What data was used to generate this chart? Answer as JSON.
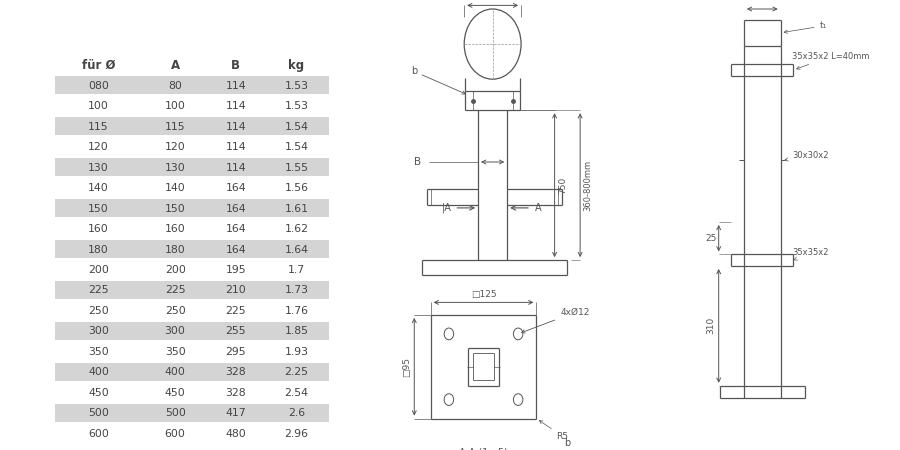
{
  "table_headers": [
    "für Ø",
    "A",
    "B",
    "kg"
  ],
  "table_rows": [
    [
      "080",
      "80",
      "114",
      "1.53"
    ],
    [
      "100",
      "100",
      "114",
      "1.53"
    ],
    [
      "115",
      "115",
      "114",
      "1.54"
    ],
    [
      "120",
      "120",
      "114",
      "1.54"
    ],
    [
      "130",
      "130",
      "114",
      "1.55"
    ],
    [
      "140",
      "140",
      "164",
      "1.56"
    ],
    [
      "150",
      "150",
      "164",
      "1.61"
    ],
    [
      "160",
      "160",
      "164",
      "1.62"
    ],
    [
      "180",
      "180",
      "164",
      "1.64"
    ],
    [
      "200",
      "200",
      "195",
      "1.7"
    ],
    [
      "225",
      "225",
      "210",
      "1.73"
    ],
    [
      "250",
      "250",
      "225",
      "1.76"
    ],
    [
      "300",
      "300",
      "255",
      "1.85"
    ],
    [
      "350",
      "350",
      "295",
      "1.93"
    ],
    [
      "400",
      "400",
      "328",
      "2.25"
    ],
    [
      "450",
      "450",
      "328",
      "2.54"
    ],
    [
      "500",
      "500",
      "417",
      "2.6"
    ],
    [
      "600",
      "600",
      "480",
      "2.96"
    ]
  ],
  "shaded_rows": [
    0,
    2,
    4,
    6,
    8,
    10,
    12,
    14,
    16
  ],
  "shade_color": "#d4d4d4",
  "text_color": "#444444",
  "line_color": "#555555",
  "bg_color": "#ffffff"
}
